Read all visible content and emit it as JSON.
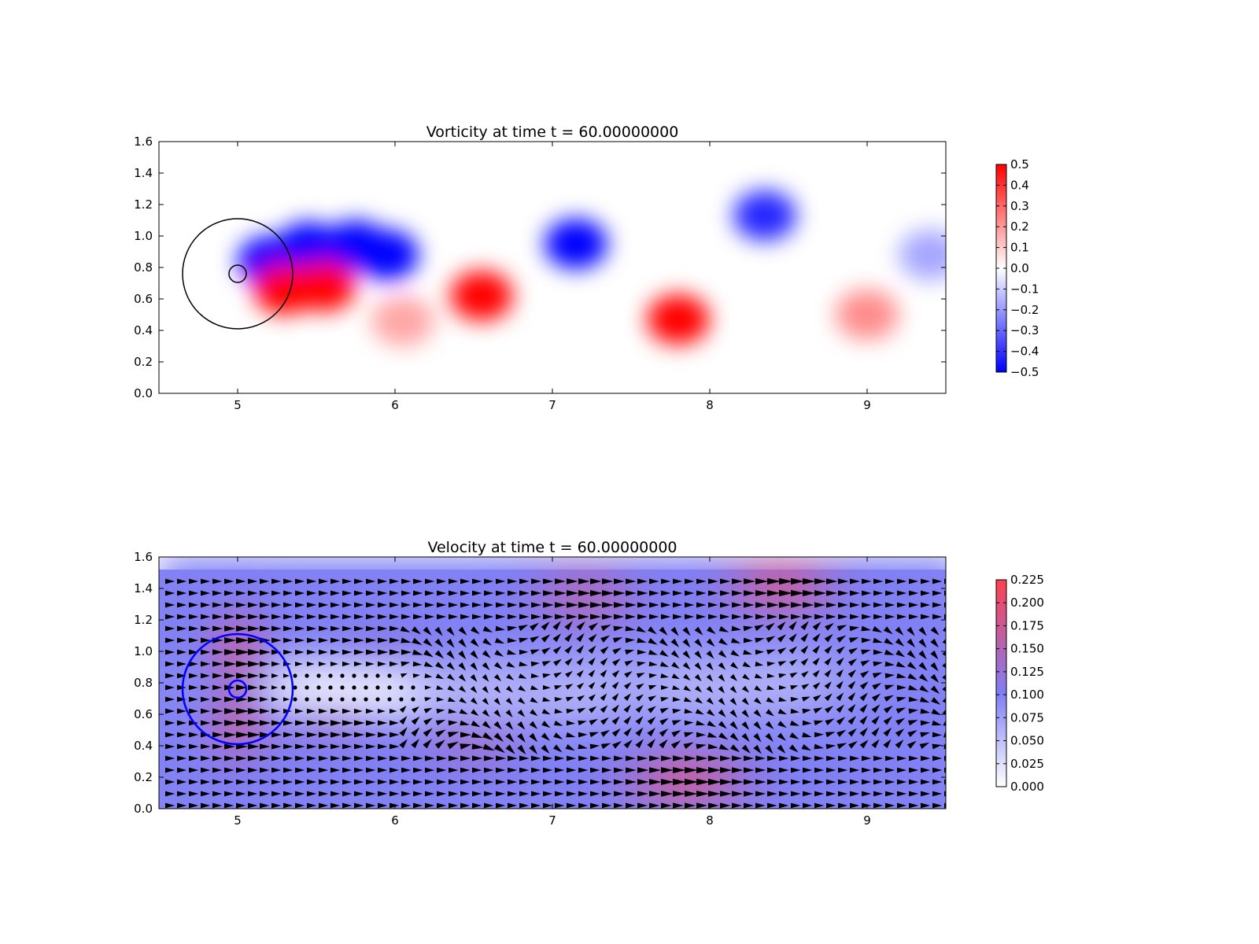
{
  "chart_data": [
    {
      "type": "heatmap",
      "title": "Vorticity at time t =    60.00000000",
      "xlim": [
        4.5,
        9.5
      ],
      "ylim": [
        0.0,
        1.6
      ],
      "xticks": [
        "5",
        "6",
        "7",
        "8",
        "9"
      ],
      "yticks": [
        "0.0",
        "0.2",
        "0.4",
        "0.6",
        "0.8",
        "1.0",
        "1.2",
        "1.4",
        "1.6"
      ],
      "colormap": "bwr",
      "colors": {
        "negative": "#0000ff",
        "zero": "#ffffff",
        "positive": "#ff0000"
      },
      "clim": [
        -0.5,
        0.5
      ],
      "colorbar_ticks": [
        "−0.5",
        "−0.4",
        "−0.3",
        "−0.2",
        "−0.1",
        "0.0",
        "0.1",
        "0.2",
        "0.3",
        "0.4",
        "0.5"
      ],
      "vortices": [
        {
          "x": 5.2,
          "y": 0.84,
          "w": -1.0
        },
        {
          "x": 5.45,
          "y": 0.93,
          "w": -1.0
        },
        {
          "x": 5.75,
          "y": 0.94,
          "w": -1.0
        },
        {
          "x": 5.95,
          "y": 0.88,
          "w": -1.0
        },
        {
          "x": 5.3,
          "y": 0.66,
          "w": 1.0
        },
        {
          "x": 5.55,
          "y": 0.68,
          "w": 1.0
        },
        {
          "x": 6.05,
          "y": 0.46,
          "w": 0.35
        },
        {
          "x": 6.55,
          "y": 0.62,
          "w": 1.0
        },
        {
          "x": 7.15,
          "y": 0.95,
          "w": -1.0
        },
        {
          "x": 7.8,
          "y": 0.47,
          "w": 1.0
        },
        {
          "x": 8.35,
          "y": 1.13,
          "w": -0.85
        },
        {
          "x": 9.0,
          "y": 0.5,
          "w": 0.45
        },
        {
          "x": 9.4,
          "y": 0.88,
          "w": -0.35
        }
      ],
      "circles": [
        {
          "x": 5.0,
          "y": 0.76,
          "r": 0.35,
          "color": "#000000"
        },
        {
          "x": 5.0,
          "y": 0.76,
          "r": 0.055,
          "color": "#000000"
        }
      ]
    },
    {
      "type": "heatmap",
      "title": "Velocity at time t =    60.00000000",
      "xlim": [
        4.5,
        9.5
      ],
      "ylim": [
        0.0,
        1.6
      ],
      "xticks": [
        "5",
        "6",
        "7",
        "8",
        "9"
      ],
      "yticks": [
        "0.0",
        "0.2",
        "0.4",
        "0.6",
        "0.8",
        "1.0",
        "1.2",
        "1.4",
        "1.6"
      ],
      "colors": {
        "low": "#ffffff",
        "mid": "#7f7ff5",
        "high": "#ff4050",
        "arrow": "#000000"
      },
      "clim": [
        0.0,
        0.225
      ],
      "colorbar_ticks": [
        "0.000",
        "0.025",
        "0.050",
        "0.075",
        "0.100",
        "0.125",
        "0.150",
        "0.175",
        "0.200",
        "0.225"
      ],
      "field_top_y": 1.52,
      "background_speed": 0.1,
      "quiver": {
        "x_start": 4.54,
        "dx": 0.075,
        "y_start": 0.02,
        "dy": 0.075,
        "rows": 20
      },
      "circles": [
        {
          "x": 5.0,
          "y": 0.76,
          "r": 0.35,
          "color": "#0000ff"
        },
        {
          "x": 5.0,
          "y": 0.76,
          "r": 0.055,
          "color": "#0000ff"
        }
      ]
    }
  ]
}
